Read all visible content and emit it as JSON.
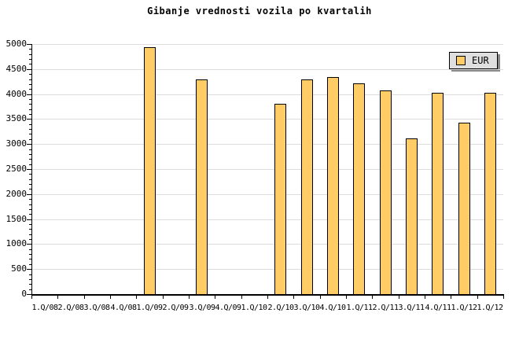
{
  "chart": {
    "title": "Gibanje vrednosti vozila po kvartalih",
    "legend": {
      "label": "EUR",
      "position": "top-right"
    }
  },
  "chart_data": {
    "type": "bar",
    "title": "Gibanje vrednosti vozila po kvartalih",
    "categories": [
      "1.Q/08",
      "2.Q/08",
      "3.Q/08",
      "4.Q/08",
      "1.Q/09",
      "2.Q/09",
      "3.Q/09",
      "4.Q/09",
      "1.Q/10",
      "2.Q/10",
      "3.Q/10",
      "4.Q/10",
      "1.Q/11",
      "2.Q/11",
      "3.Q/11",
      "4.Q/11",
      "1.Q/12",
      "1.Q/12"
    ],
    "series": [
      {
        "name": "EUR",
        "values": [
          null,
          null,
          null,
          null,
          4930,
          null,
          4290,
          null,
          null,
          3810,
          4290,
          4340,
          4210,
          4080,
          3110,
          4020,
          3430,
          4030
        ]
      }
    ],
    "xlabel": "",
    "ylabel": "",
    "ylim": [
      0,
      5000
    ],
    "ytick_major": 500,
    "ytick_minor": 100,
    "ytick_labels": [
      "0",
      "500",
      "1000",
      "1500",
      "2000",
      "2500",
      "3000",
      "3500",
      "4000",
      "4500",
      "5000"
    ],
    "grid": "horizontal-major",
    "legend_position": "top-right"
  },
  "colors": {
    "background": "#FFFFFF",
    "bar_fill": "#FFCC66",
    "bar_border": "#000000",
    "gridline": "#DDDDDD",
    "axis": "#000000",
    "text": "#000000",
    "legend_bg": "#DFDFDF",
    "legend_border": "#000000",
    "legend_shadow": "#888888"
  }
}
